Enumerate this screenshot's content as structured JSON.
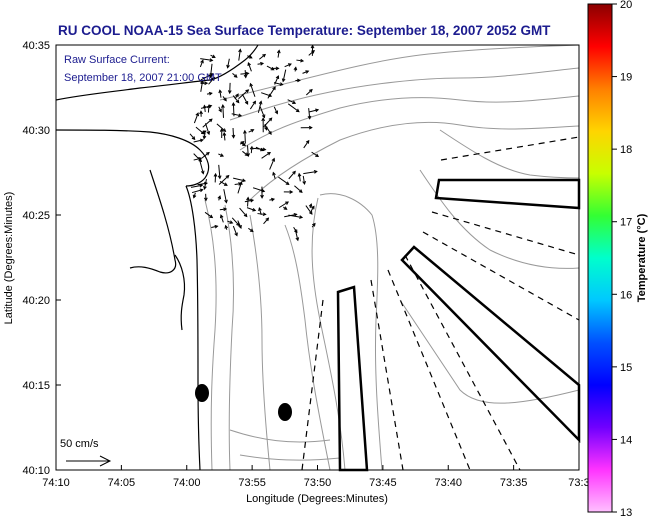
{
  "title": "RU COOL  NOAA-15  Sea Surface Temperature:  September 18, 2007 2052 GMT",
  "subtitle_line1": "Raw Surface Current:",
  "subtitle_line2": "September 18, 2007 21:00 GMT",
  "ylabel": "Latitude (Degrees:Minutes)",
  "xlabel": "Longitude (Degrees:Minutes)",
  "colorbar_label": "Temperature (°C)",
  "scale_label": "50 cm/s",
  "x_ticks": [
    "74:10",
    "74:05",
    "74:00",
    "73:55",
    "73:50",
    "73:45",
    "73:40",
    "73:35",
    "73:3"
  ],
  "y_ticks": [
    "40:35",
    "40:30",
    "40:25",
    "40:20",
    "40:15",
    "40:10"
  ],
  "colorbar_ticks": [
    "20",
    "19",
    "18",
    "17",
    "16",
    "15",
    "14",
    "13"
  ],
  "colorbar_colors": [
    "#8b0000",
    "#ff0000",
    "#ff7f00",
    "#ffd400",
    "#c8ff00",
    "#33ff33",
    "#00ffcc",
    "#00c8ff",
    "#0050ff",
    "#0000ff",
    "#7000ff",
    "#ff33ff",
    "#ffc0ff"
  ],
  "land_color": "#ffffff",
  "contour_color": "#999999"
}
